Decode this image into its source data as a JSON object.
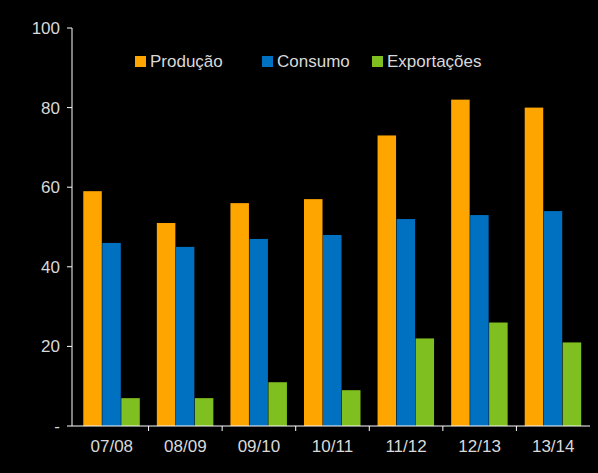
{
  "chart_data": {
    "type": "bar",
    "categories": [
      "07/08",
      "08/09",
      "09/10",
      "10/11",
      "11/12",
      "12/13",
      "13/14"
    ],
    "series": [
      {
        "name": "Produção",
        "color": "#ffa500",
        "values": [
          59,
          51,
          56,
          57,
          73,
          82,
          80
        ]
      },
      {
        "name": "Consumo",
        "color": "#0070c0",
        "values": [
          46,
          45,
          47,
          48,
          52,
          53,
          54
        ]
      },
      {
        "name": "Exportações",
        "color": "#7fbf1f",
        "values": [
          7,
          7,
          11,
          9,
          22,
          26,
          21
        ]
      }
    ],
    "ylim": [
      0,
      100
    ],
    "yticks": [
      {
        "value": 0,
        "label": "-"
      },
      20,
      40,
      60,
      80,
      100
    ],
    "grid": false,
    "legend": "top"
  }
}
